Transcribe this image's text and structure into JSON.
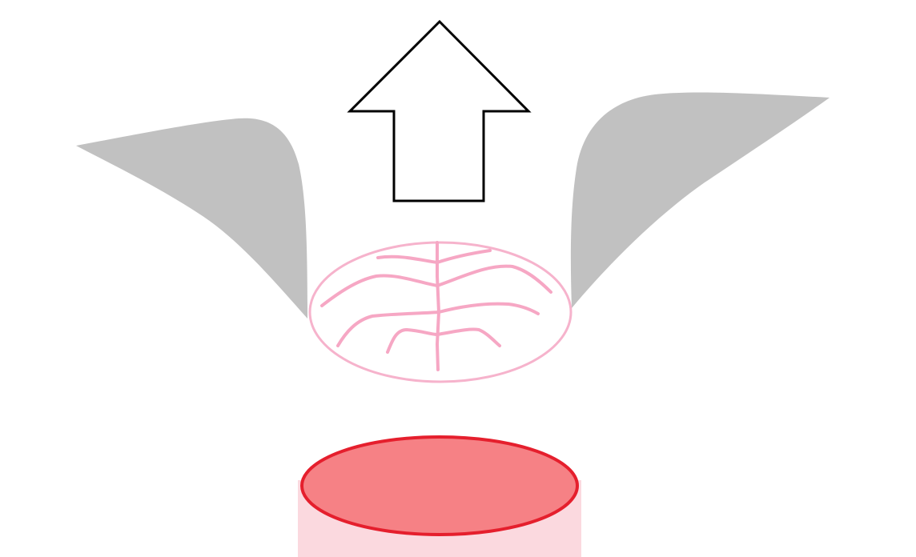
{
  "colors": {
    "background": "#ffffff",
    "flap_fill": "#c1c1c1",
    "tissue_outline": "#f6b3cc",
    "tissue_veins": "#f6a7c4",
    "arrow_stroke": "#000000",
    "arrow_fill": "#ffffff",
    "base_side_fill": "#fbd9df",
    "base_top_fill": "#f68185",
    "base_top_stroke": "#e51f2d"
  },
  "icons": {
    "arrow": "arrow-up-icon"
  },
  "elements": {
    "direction_arrow": "upward-arrow",
    "left_flap": "gray-flap",
    "right_flap": "gray-flap",
    "tissue_disc": "pink-veined-disc",
    "base": "red-cylinder-base"
  }
}
